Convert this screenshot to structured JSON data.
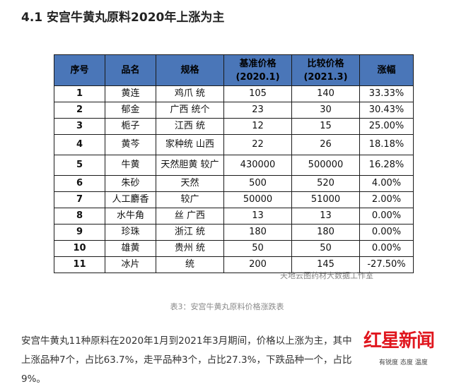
{
  "heading": "4.1 安宫牛黄丸原料2020年上涨为主",
  "table": {
    "headers": [
      "序号",
      "品名",
      "规格",
      "基准价格(2020.1)",
      "比较价格(2021.3)",
      "涨幅"
    ],
    "header_lines": [
      [
        "序号"
      ],
      [
        "品名"
      ],
      [
        "规格"
      ],
      [
        "基准价格",
        "(2020.1)"
      ],
      [
        "比较价格",
        "(2021.3)"
      ],
      [
        "涨幅"
      ]
    ],
    "rows": [
      [
        "1",
        "黄连",
        "鸡爪 统",
        "105",
        "140",
        "33.33%"
      ],
      [
        "2",
        "郁金",
        "广西 统个",
        "23",
        "30",
        "30.43%"
      ],
      [
        "3",
        "栀子",
        "江西 统",
        "12",
        "15",
        "25.00%"
      ],
      [
        "4",
        "黄芩",
        "家种统 山西",
        "22",
        "26",
        "18.18%"
      ],
      [
        "5",
        "牛黄",
        "天然胆黄 较广",
        "430000",
        "500000",
        "16.28%"
      ],
      [
        "6",
        "朱砂",
        "天然",
        "500",
        "520",
        "4.00%"
      ],
      [
        "7",
        "人工麝香",
        "较广",
        "50000",
        "51000",
        "2.00%"
      ],
      [
        "8",
        "水牛角",
        "丝 广西",
        "13",
        "13",
        "0.00%"
      ],
      [
        "9",
        "珍珠",
        "浙江 统",
        "180",
        "180",
        "0.00%"
      ],
      [
        "10",
        "雄黄",
        "贵州 统",
        "50",
        "50",
        "0.00%"
      ],
      [
        "11",
        "冰片",
        "统",
        "200",
        "145",
        "-27.50%"
      ]
    ]
  },
  "watermark": "天地云图药材大数据工作室",
  "caption": "表3：安宫牛黄丸原料价格涨跌表",
  "paragraph": "安宫牛黄丸11种原料在2020年1月到2021年3月期间，价格以上涨为主，其中上涨品种7个，占比63.7%，走平品种3个，占比27.3%，下跌品种一个，占比9%。",
  "logo": {
    "brand": "红星新闻",
    "tagline": "有锐度 态度 温度"
  },
  "colors": {
    "header_bg": "#4a76b8",
    "brand_red": "#e0161e"
  }
}
